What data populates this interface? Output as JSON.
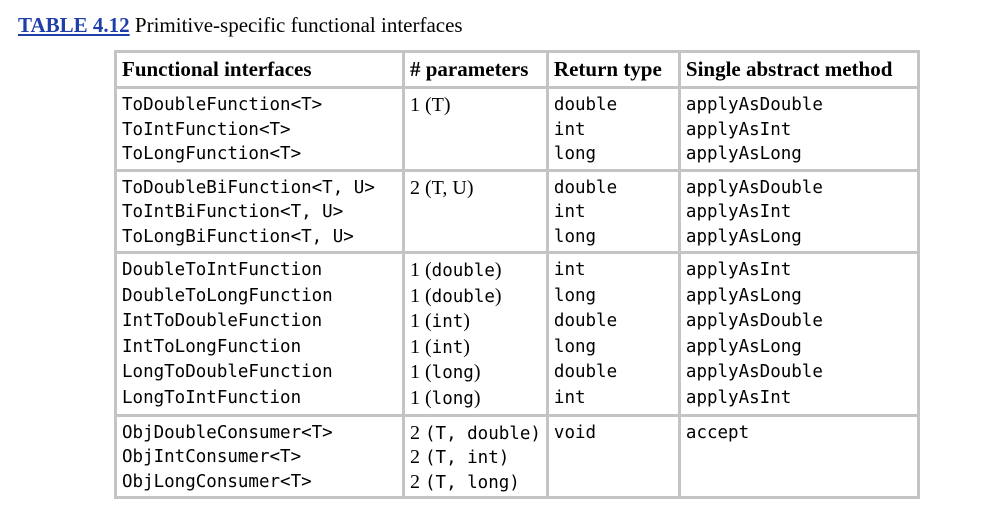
{
  "caption": {
    "label": "TABLE 4.12",
    "text": " Primitive-specific functional interfaces"
  },
  "table": {
    "headers": [
      "Functional interfaces",
      "# parameters",
      "Return type",
      "Single abstract method"
    ],
    "groups": [
      {
        "interfaces": [
          "ToDoubleFunction<T>",
          "ToIntFunction<T>",
          "ToLongFunction<T>"
        ],
        "parameters": [
          {
            "n": "1 (T)",
            "t": ""
          }
        ],
        "return_types": [
          "double",
          "int",
          "long"
        ],
        "methods": [
          "applyAsDouble",
          "applyAsInt",
          "applyAsLong"
        ]
      },
      {
        "interfaces": [
          "ToDoubleBiFunction<T, U>",
          "ToIntBiFunction<T, U>",
          "ToLongBiFunction<T, U>"
        ],
        "parameters": [
          {
            "n": "2 (T, U)",
            "t": ""
          }
        ],
        "return_types": [
          "double",
          "int",
          "long"
        ],
        "methods": [
          "applyAsDouble",
          "applyAsInt",
          "applyAsLong"
        ]
      },
      {
        "interfaces": [
          "DoubleToIntFunction",
          "DoubleToLongFunction",
          "IntToDoubleFunction",
          "IntToLongFunction",
          "LongToDoubleFunction",
          "LongToIntFunction"
        ],
        "parameters": [
          {
            "n": "1 (",
            "t": "double",
            "e": ")"
          },
          {
            "n": "1 (",
            "t": "double",
            "e": ")"
          },
          {
            "n": "1 (",
            "t": "int",
            "e": ")"
          },
          {
            "n": "1 (",
            "t": "int",
            "e": ")"
          },
          {
            "n": "1 (",
            "t": "long",
            "e": ")"
          },
          {
            "n": "1 (",
            "t": "long",
            "e": ")"
          }
        ],
        "return_types": [
          "int",
          "long",
          "double",
          "long",
          "double",
          "int"
        ],
        "methods": [
          "applyAsInt",
          "applyAsLong",
          "applyAsDouble",
          "applyAsLong",
          "applyAsDouble",
          "applyAsInt"
        ]
      },
      {
        "interfaces": [
          "ObjDoubleConsumer<T>",
          "ObjIntConsumer<T>",
          "ObjLongConsumer<T>"
        ],
        "parameters": [
          {
            "n": "2 ",
            "t": "(T, double)",
            "e": ""
          },
          {
            "n": "2 ",
            "t": "(T, int)",
            "e": ""
          },
          {
            "n": "2 ",
            "t": "(T, long)",
            "e": ""
          }
        ],
        "return_types": [
          "void"
        ],
        "methods": [
          "accept"
        ]
      }
    ]
  }
}
